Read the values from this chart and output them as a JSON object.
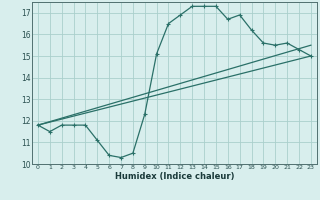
{
  "xlabel": "Humidex (Indice chaleur)",
  "bg_color": "#d8eeed",
  "grid_color": "#aacfcc",
  "line_color": "#2a7068",
  "xlim": [
    -0.5,
    23.5
  ],
  "ylim": [
    10,
    17.5
  ],
  "xticks": [
    0,
    1,
    2,
    3,
    4,
    5,
    6,
    7,
    8,
    9,
    10,
    11,
    12,
    13,
    14,
    15,
    16,
    17,
    18,
    19,
    20,
    21,
    22,
    23
  ],
  "yticks": [
    10,
    11,
    12,
    13,
    14,
    15,
    16,
    17
  ],
  "curve1_x": [
    0,
    1,
    2,
    3,
    4,
    5,
    6,
    7,
    8,
    9,
    10,
    11,
    12,
    13,
    14,
    15,
    16,
    17,
    18,
    19,
    20,
    21,
    22,
    23
  ],
  "curve1_y": [
    11.8,
    11.5,
    11.8,
    11.8,
    11.8,
    11.1,
    10.4,
    10.3,
    10.5,
    12.3,
    15.1,
    16.5,
    16.9,
    17.3,
    17.3,
    17.3,
    16.7,
    16.9,
    16.2,
    15.6,
    15.5,
    15.6,
    15.3,
    15.0
  ],
  "curve2_x": [
    0,
    23
  ],
  "curve2_y": [
    11.8,
    15.5
  ],
  "curve3_x": [
    0,
    23
  ],
  "curve3_y": [
    11.8,
    15.0
  ]
}
